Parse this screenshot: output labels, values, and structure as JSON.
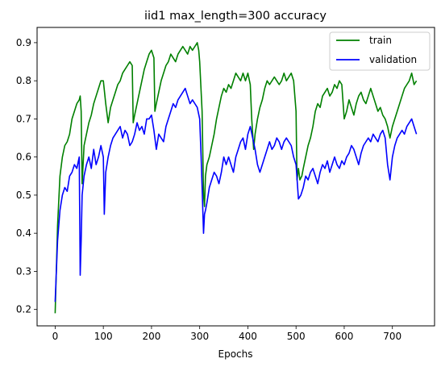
{
  "chart_data": {
    "type": "line",
    "title": "iid1 max_length=300 accuracy",
    "xlabel": "Epochs",
    "ylabel": "",
    "xlim": [
      -37.5,
      787.5
    ],
    "ylim": [
      0.157,
      0.94
    ],
    "xticks": [
      0,
      100,
      200,
      300,
      400,
      500,
      600,
      700
    ],
    "yticks": [
      0.2,
      0.3,
      0.4,
      0.5,
      0.6,
      0.7,
      0.8,
      0.9
    ],
    "grid": false,
    "legend_position": "top-right",
    "series": [
      {
        "name": "train",
        "color": "#008000",
        "x": [
          0,
          5,
          10,
          15,
          20,
          25,
          30,
          35,
          40,
          45,
          50,
          52,
          54,
          56,
          60,
          65,
          70,
          75,
          80,
          85,
          90,
          95,
          100,
          105,
          110,
          115,
          120,
          125,
          130,
          135,
          140,
          145,
          150,
          155,
          160,
          162,
          165,
          170,
          175,
          180,
          185,
          190,
          195,
          200,
          205,
          207,
          210,
          215,
          220,
          225,
          230,
          235,
          240,
          245,
          250,
          255,
          260,
          265,
          270,
          275,
          280,
          285,
          290,
          295,
          298,
          300,
          305,
          308,
          310,
          312,
          315,
          320,
          325,
          330,
          335,
          340,
          345,
          350,
          355,
          360,
          365,
          370,
          375,
          380,
          385,
          390,
          395,
          400,
          405,
          408,
          412,
          415,
          420,
          425,
          430,
          435,
          440,
          445,
          450,
          455,
          460,
          465,
          470,
          475,
          480,
          485,
          490,
          495,
          500,
          502,
          505,
          508,
          512,
          515,
          520,
          525,
          530,
          535,
          540,
          545,
          550,
          555,
          560,
          565,
          570,
          575,
          580,
          585,
          590,
          595,
          600,
          605,
          610,
          615,
          620,
          625,
          630,
          635,
          640,
          645,
          650,
          655,
          660,
          665,
          670,
          675,
          680,
          685,
          690,
          695,
          700,
          705,
          710,
          715,
          720,
          725,
          730,
          735,
          740,
          745,
          750
        ],
        "values": [
          0.19,
          0.42,
          0.55,
          0.6,
          0.63,
          0.64,
          0.66,
          0.7,
          0.72,
          0.74,
          0.75,
          0.76,
          0.72,
          0.53,
          0.63,
          0.66,
          0.69,
          0.71,
          0.74,
          0.76,
          0.78,
          0.8,
          0.8,
          0.74,
          0.69,
          0.73,
          0.75,
          0.77,
          0.79,
          0.8,
          0.82,
          0.83,
          0.84,
          0.85,
          0.84,
          0.69,
          0.71,
          0.74,
          0.77,
          0.8,
          0.83,
          0.85,
          0.87,
          0.88,
          0.86,
          0.72,
          0.74,
          0.77,
          0.8,
          0.82,
          0.84,
          0.85,
          0.87,
          0.86,
          0.85,
          0.87,
          0.88,
          0.89,
          0.88,
          0.87,
          0.89,
          0.88,
          0.89,
          0.9,
          0.88,
          0.85,
          0.72,
          0.5,
          0.47,
          0.55,
          0.58,
          0.6,
          0.63,
          0.66,
          0.7,
          0.73,
          0.76,
          0.78,
          0.77,
          0.79,
          0.78,
          0.8,
          0.82,
          0.81,
          0.8,
          0.82,
          0.8,
          0.82,
          0.79,
          0.7,
          0.62,
          0.66,
          0.7,
          0.73,
          0.75,
          0.78,
          0.8,
          0.79,
          0.8,
          0.81,
          0.8,
          0.79,
          0.8,
          0.82,
          0.8,
          0.81,
          0.82,
          0.8,
          0.72,
          0.54,
          0.57,
          0.54,
          0.55,
          0.57,
          0.6,
          0.63,
          0.65,
          0.68,
          0.72,
          0.74,
          0.73,
          0.76,
          0.77,
          0.78,
          0.76,
          0.77,
          0.79,
          0.78,
          0.8,
          0.79,
          0.7,
          0.72,
          0.75,
          0.73,
          0.71,
          0.74,
          0.76,
          0.77,
          0.75,
          0.74,
          0.76,
          0.78,
          0.76,
          0.74,
          0.72,
          0.73,
          0.71,
          0.7,
          0.68,
          0.65,
          0.68,
          0.7,
          0.72,
          0.74,
          0.76,
          0.78,
          0.79,
          0.8,
          0.82,
          0.79,
          0.8
        ]
      },
      {
        "name": "validation",
        "color": "#0000ff",
        "x": [
          0,
          5,
          10,
          15,
          20,
          25,
          30,
          35,
          40,
          45,
          50,
          52,
          54,
          56,
          60,
          65,
          70,
          75,
          80,
          85,
          90,
          95,
          100,
          102,
          105,
          110,
          115,
          120,
          125,
          130,
          135,
          140,
          145,
          150,
          155,
          160,
          165,
          170,
          175,
          180,
          185,
          190,
          195,
          200,
          205,
          210,
          215,
          220,
          225,
          230,
          235,
          240,
          245,
          250,
          255,
          260,
          265,
          270,
          275,
          280,
          285,
          290,
          295,
          300,
          303,
          306,
          308,
          310,
          312,
          315,
          320,
          325,
          330,
          335,
          340,
          345,
          350,
          355,
          360,
          365,
          370,
          375,
          380,
          385,
          390,
          395,
          400,
          405,
          410,
          415,
          420,
          425,
          430,
          435,
          440,
          445,
          450,
          455,
          460,
          465,
          470,
          475,
          480,
          485,
          490,
          495,
          500,
          505,
          510,
          515,
          520,
          525,
          530,
          535,
          540,
          545,
          550,
          555,
          560,
          565,
          570,
          575,
          580,
          585,
          590,
          595,
          600,
          605,
          610,
          615,
          620,
          625,
          630,
          635,
          640,
          645,
          650,
          655,
          660,
          665,
          670,
          675,
          680,
          685,
          690,
          695,
          700,
          705,
          710,
          715,
          720,
          725,
          730,
          735,
          740,
          745,
          750
        ],
        "values": [
          0.22,
          0.38,
          0.46,
          0.5,
          0.52,
          0.51,
          0.55,
          0.56,
          0.58,
          0.57,
          0.6,
          0.29,
          0.38,
          0.5,
          0.55,
          0.58,
          0.6,
          0.57,
          0.62,
          0.58,
          0.6,
          0.63,
          0.6,
          0.45,
          0.56,
          0.6,
          0.63,
          0.65,
          0.66,
          0.67,
          0.68,
          0.65,
          0.67,
          0.66,
          0.63,
          0.64,
          0.66,
          0.69,
          0.67,
          0.68,
          0.66,
          0.7,
          0.7,
          0.71,
          0.67,
          0.62,
          0.66,
          0.65,
          0.64,
          0.68,
          0.7,
          0.72,
          0.74,
          0.73,
          0.75,
          0.76,
          0.77,
          0.78,
          0.76,
          0.74,
          0.75,
          0.74,
          0.73,
          0.7,
          0.6,
          0.48,
          0.4,
          0.45,
          0.46,
          0.48,
          0.52,
          0.54,
          0.56,
          0.55,
          0.53,
          0.56,
          0.6,
          0.58,
          0.6,
          0.58,
          0.56,
          0.6,
          0.62,
          0.64,
          0.65,
          0.62,
          0.66,
          0.68,
          0.65,
          0.62,
          0.58,
          0.56,
          0.58,
          0.6,
          0.62,
          0.64,
          0.62,
          0.63,
          0.65,
          0.64,
          0.62,
          0.64,
          0.65,
          0.64,
          0.63,
          0.6,
          0.58,
          0.49,
          0.5,
          0.52,
          0.55,
          0.54,
          0.56,
          0.57,
          0.55,
          0.53,
          0.56,
          0.58,
          0.57,
          0.59,
          0.56,
          0.58,
          0.6,
          0.58,
          0.57,
          0.59,
          0.58,
          0.6,
          0.61,
          0.63,
          0.62,
          0.6,
          0.58,
          0.61,
          0.63,
          0.64,
          0.65,
          0.64,
          0.66,
          0.65,
          0.64,
          0.66,
          0.67,
          0.65,
          0.58,
          0.54,
          0.6,
          0.63,
          0.65,
          0.66,
          0.67,
          0.66,
          0.68,
          0.69,
          0.7,
          0.68,
          0.66
        ]
      }
    ]
  }
}
